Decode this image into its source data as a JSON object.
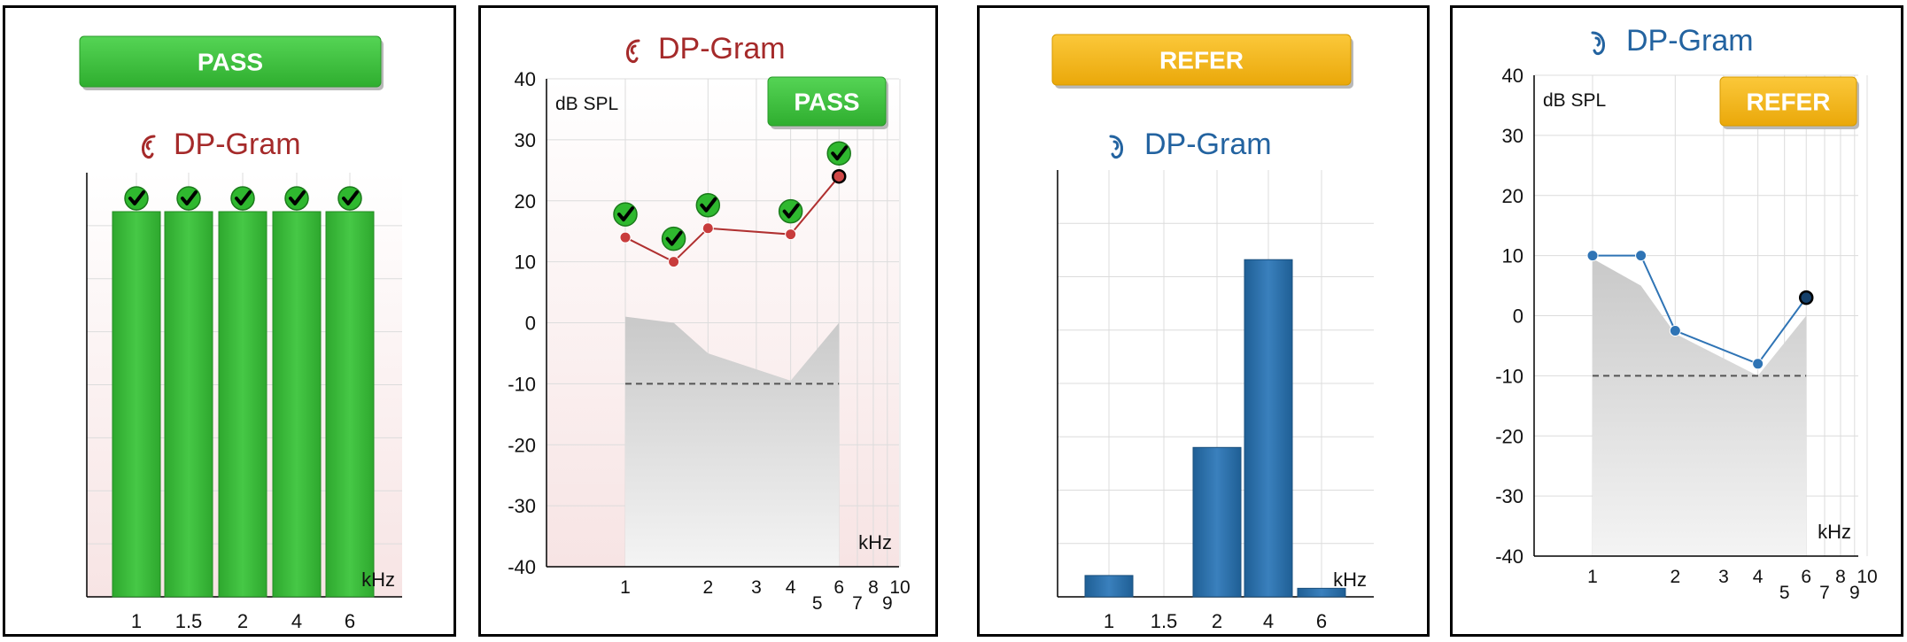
{
  "chart_data": [
    {
      "type": "bar",
      "title": "DP-Gram",
      "status_badge": "PASS",
      "ear": "right",
      "categories": [
        "1",
        "1.5",
        "2",
        "4",
        "6"
      ],
      "values": [
        1,
        1,
        1,
        1,
        1
      ],
      "passed": [
        true,
        true,
        true,
        true,
        true
      ],
      "xlabel": "kHz",
      "colors": {
        "bar": "#33b233",
        "badge": "#3fc23f",
        "title": "#a52a2a"
      }
    },
    {
      "type": "line",
      "title": "DP-Gram",
      "status_badge": "PASS",
      "ear": "right",
      "ylabel": "dB SPL",
      "xlabel": "kHz",
      "ylim": [
        -40,
        40
      ],
      "yticks": [
        40,
        30,
        20,
        10,
        0,
        -10,
        -20,
        -30,
        -40
      ],
      "xticks": [
        "1",
        "2",
        "3",
        "4",
        "5",
        "6",
        "7",
        "8",
        "9",
        "10"
      ],
      "x_scale": "log",
      "series": [
        {
          "x": [
            1,
            1.5,
            2,
            4,
            6
          ],
          "y": [
            14,
            10,
            15.5,
            14.5,
            24
          ],
          "passed": [
            true,
            true,
            true,
            true,
            true
          ]
        }
      ],
      "noise_floor": {
        "x": [
          1,
          1.5,
          2,
          4,
          6
        ],
        "y": [
          1,
          0,
          -5,
          -9.5,
          0
        ]
      },
      "reference_line": -10,
      "colors": {
        "line": "#b03030",
        "point": "#c83c3c",
        "badge": "#3fc23f",
        "title": "#a52a2a"
      }
    },
    {
      "type": "bar",
      "title": "DP-Gram",
      "status_badge": "REFER",
      "ear": "left",
      "categories": [
        "1",
        "1.5",
        "2",
        "4",
        "6"
      ],
      "values": [
        0.05,
        0,
        0.35,
        0.79,
        0.02
      ],
      "xlabel": "kHz",
      "colors": {
        "bar": "#2a6fa8",
        "badge": "#f5b50a",
        "title": "#2363a0"
      }
    },
    {
      "type": "line",
      "title": "DP-Gram",
      "status_badge": "REFER",
      "ear": "left",
      "ylabel": "dB SPL",
      "xlabel": "kHz",
      "ylim": [
        -40,
        40
      ],
      "yticks": [
        40,
        30,
        20,
        10,
        0,
        -10,
        -20,
        -30,
        -40
      ],
      "xticks": [
        "1",
        "2",
        "3",
        "4",
        "5",
        "6",
        "7",
        "8",
        "9",
        "10"
      ],
      "x_scale": "log",
      "series": [
        {
          "x": [
            1,
            1.5,
            2,
            4,
            6
          ],
          "y": [
            10,
            10,
            -2.5,
            -8,
            3
          ]
        }
      ],
      "noise_floor": {
        "x": [
          1,
          1.5,
          2,
          4,
          6
        ],
        "y": [
          9.5,
          5,
          -3,
          -10,
          0
        ]
      },
      "reference_line": -10,
      "colors": {
        "line": "#2f74b5",
        "point": "#2f74b5",
        "badge": "#f0b010",
        "title": "#2363a0"
      }
    }
  ]
}
